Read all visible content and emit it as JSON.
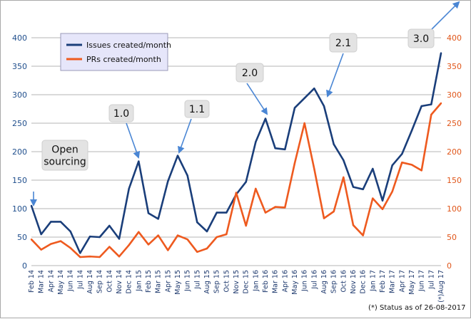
{
  "chart_data": {
    "type": "line",
    "categories": [
      "Feb 14",
      "Mar 14",
      "Apr 14",
      "May 14",
      "Jun 14",
      "Jul 14",
      "Aug 14",
      "Sep 14",
      "Oct 14",
      "Nov 14",
      "Dec 14",
      "Jan 15",
      "Feb 15",
      "Mar 15",
      "Apr 15",
      "May 15",
      "Jun 15",
      "Jul 15",
      "Aug 15",
      "Sep 15",
      "Oct 15",
      "Nov 15",
      "Dec 15",
      "Jan 16",
      "Feb 16",
      "Mar 16",
      "Apr 16",
      "May 16",
      "Jun 16",
      "Jul 16",
      "Aug 16",
      "Sep 16",
      "Oct 16",
      "Nov 16",
      "Dec 16",
      "Jan 17",
      "Feb 17",
      "Mar 17",
      "Apr 17",
      "May 17",
      "Jun 17",
      "Jul 17",
      "(*)Aug 17"
    ],
    "series": [
      {
        "name": "Issues created/month",
        "axis": "left",
        "color": "#1a3e7a",
        "values": [
          105,
          55,
          77,
          77,
          60,
          22,
          51,
          50,
          70,
          47,
          135,
          183,
          92,
          82,
          148,
          193,
          158,
          76,
          60,
          93,
          93,
          125,
          147,
          217,
          258,
          206,
          204,
          277,
          294,
          311,
          280,
          213,
          185,
          138,
          134,
          170,
          114,
          176,
          196,
          237,
          280,
          283,
          373
        ]
      },
      {
        "name": "PRs created/month",
        "axis": "right",
        "color": "#ee5a1f",
        "values": [
          46,
          28,
          38,
          43,
          31,
          15,
          16,
          15,
          33,
          16,
          36,
          59,
          37,
          53,
          27,
          53,
          46,
          24,
          30,
          50,
          55,
          128,
          70,
          135,
          93,
          103,
          102,
          180,
          250,
          170,
          83,
          95,
          155,
          71,
          53,
          118,
          99,
          130,
          181,
          177,
          167,
          265,
          285
        ]
      }
    ],
    "ylim_left": [
      0,
      400
    ],
    "yticks_left": [
      0,
      50,
      100,
      150,
      200,
      250,
      300,
      350,
      400
    ],
    "ylim_right": [
      0,
      400
    ],
    "yticks_right": [
      0,
      50,
      100,
      150,
      200,
      250,
      300,
      350,
      400
    ],
    "grid": "horizontal",
    "legend": "top-left",
    "annotations": [
      {
        "text_lines": [
          "Open",
          "sourcing"
        ],
        "category": "Feb 14"
      },
      {
        "text_lines": [
          "1.0"
        ],
        "category": "Jan 15"
      },
      {
        "text_lines": [
          "1.1"
        ],
        "category": "May 15"
      },
      {
        "text_lines": [
          "2.0"
        ],
        "category": "Feb 16"
      },
      {
        "text_lines": [
          "2.1"
        ],
        "category": "Aug 16"
      },
      {
        "text_lines": [
          "3.0"
        ],
        "category": "(*)Aug 17"
      }
    ],
    "footnote": "(*) Status as of 26-08-2017"
  }
}
